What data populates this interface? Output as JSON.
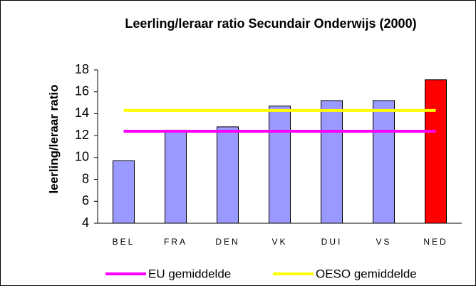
{
  "chart_data": {
    "type": "bar",
    "title": "Leerling/leraar ratio Secundair Onderwijs (2000)",
    "y_label": "leerling/leraar ratio",
    "categories": [
      "BEL",
      "FRA",
      "DEN",
      "VK",
      "DUI",
      "VS",
      "NED"
    ],
    "values": [
      9.7,
      12.5,
      12.8,
      14.7,
      15.2,
      15.2,
      17.1
    ],
    "colors": [
      "#9999ff",
      "#9999ff",
      "#9999ff",
      "#9999ff",
      "#9999ff",
      "#9999ff",
      "#ff0000"
    ],
    "lines": [
      {
        "name": "EU gemiddelde",
        "color": "#ff00ff",
        "value": 12.4
      },
      {
        "name": "OESO gemiddelde",
        "color": "#ffff00",
        "value": 14.3
      }
    ],
    "ylim": [
      4,
      18
    ],
    "yticks": [
      4,
      6,
      8,
      10,
      12,
      14,
      16,
      18
    ]
  }
}
